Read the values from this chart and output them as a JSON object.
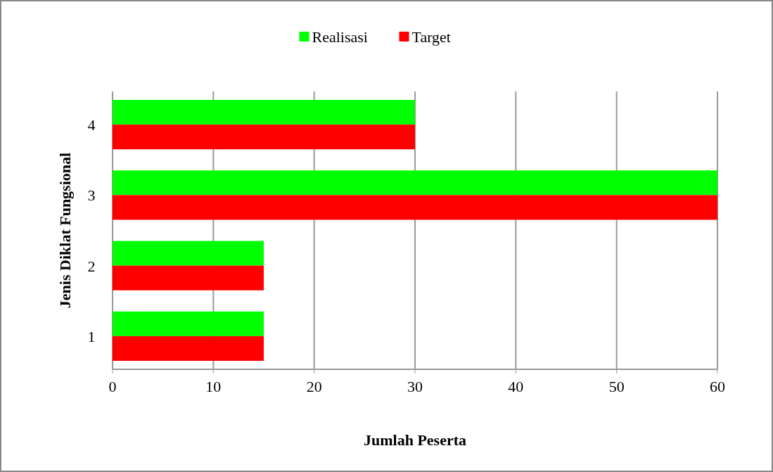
{
  "chart_data": {
    "type": "bar",
    "orientation": "horizontal",
    "xlabel": "Jumlah Peserta",
    "ylabel": "Jenis Diklat Fungsional",
    "categories": [
      "4",
      "3",
      "2",
      "1"
    ],
    "series": [
      {
        "name": "Realisasi",
        "color": "#00ff00",
        "values": [
          30,
          60,
          15,
          15
        ]
      },
      {
        "name": "Target",
        "color": "#ff0000",
        "values": [
          30,
          60,
          15,
          15
        ]
      }
    ],
    "xlim": [
      0,
      60
    ],
    "xticks": [
      0,
      10,
      20,
      30,
      40,
      50,
      60
    ],
    "grid": "x",
    "legend": "top"
  }
}
